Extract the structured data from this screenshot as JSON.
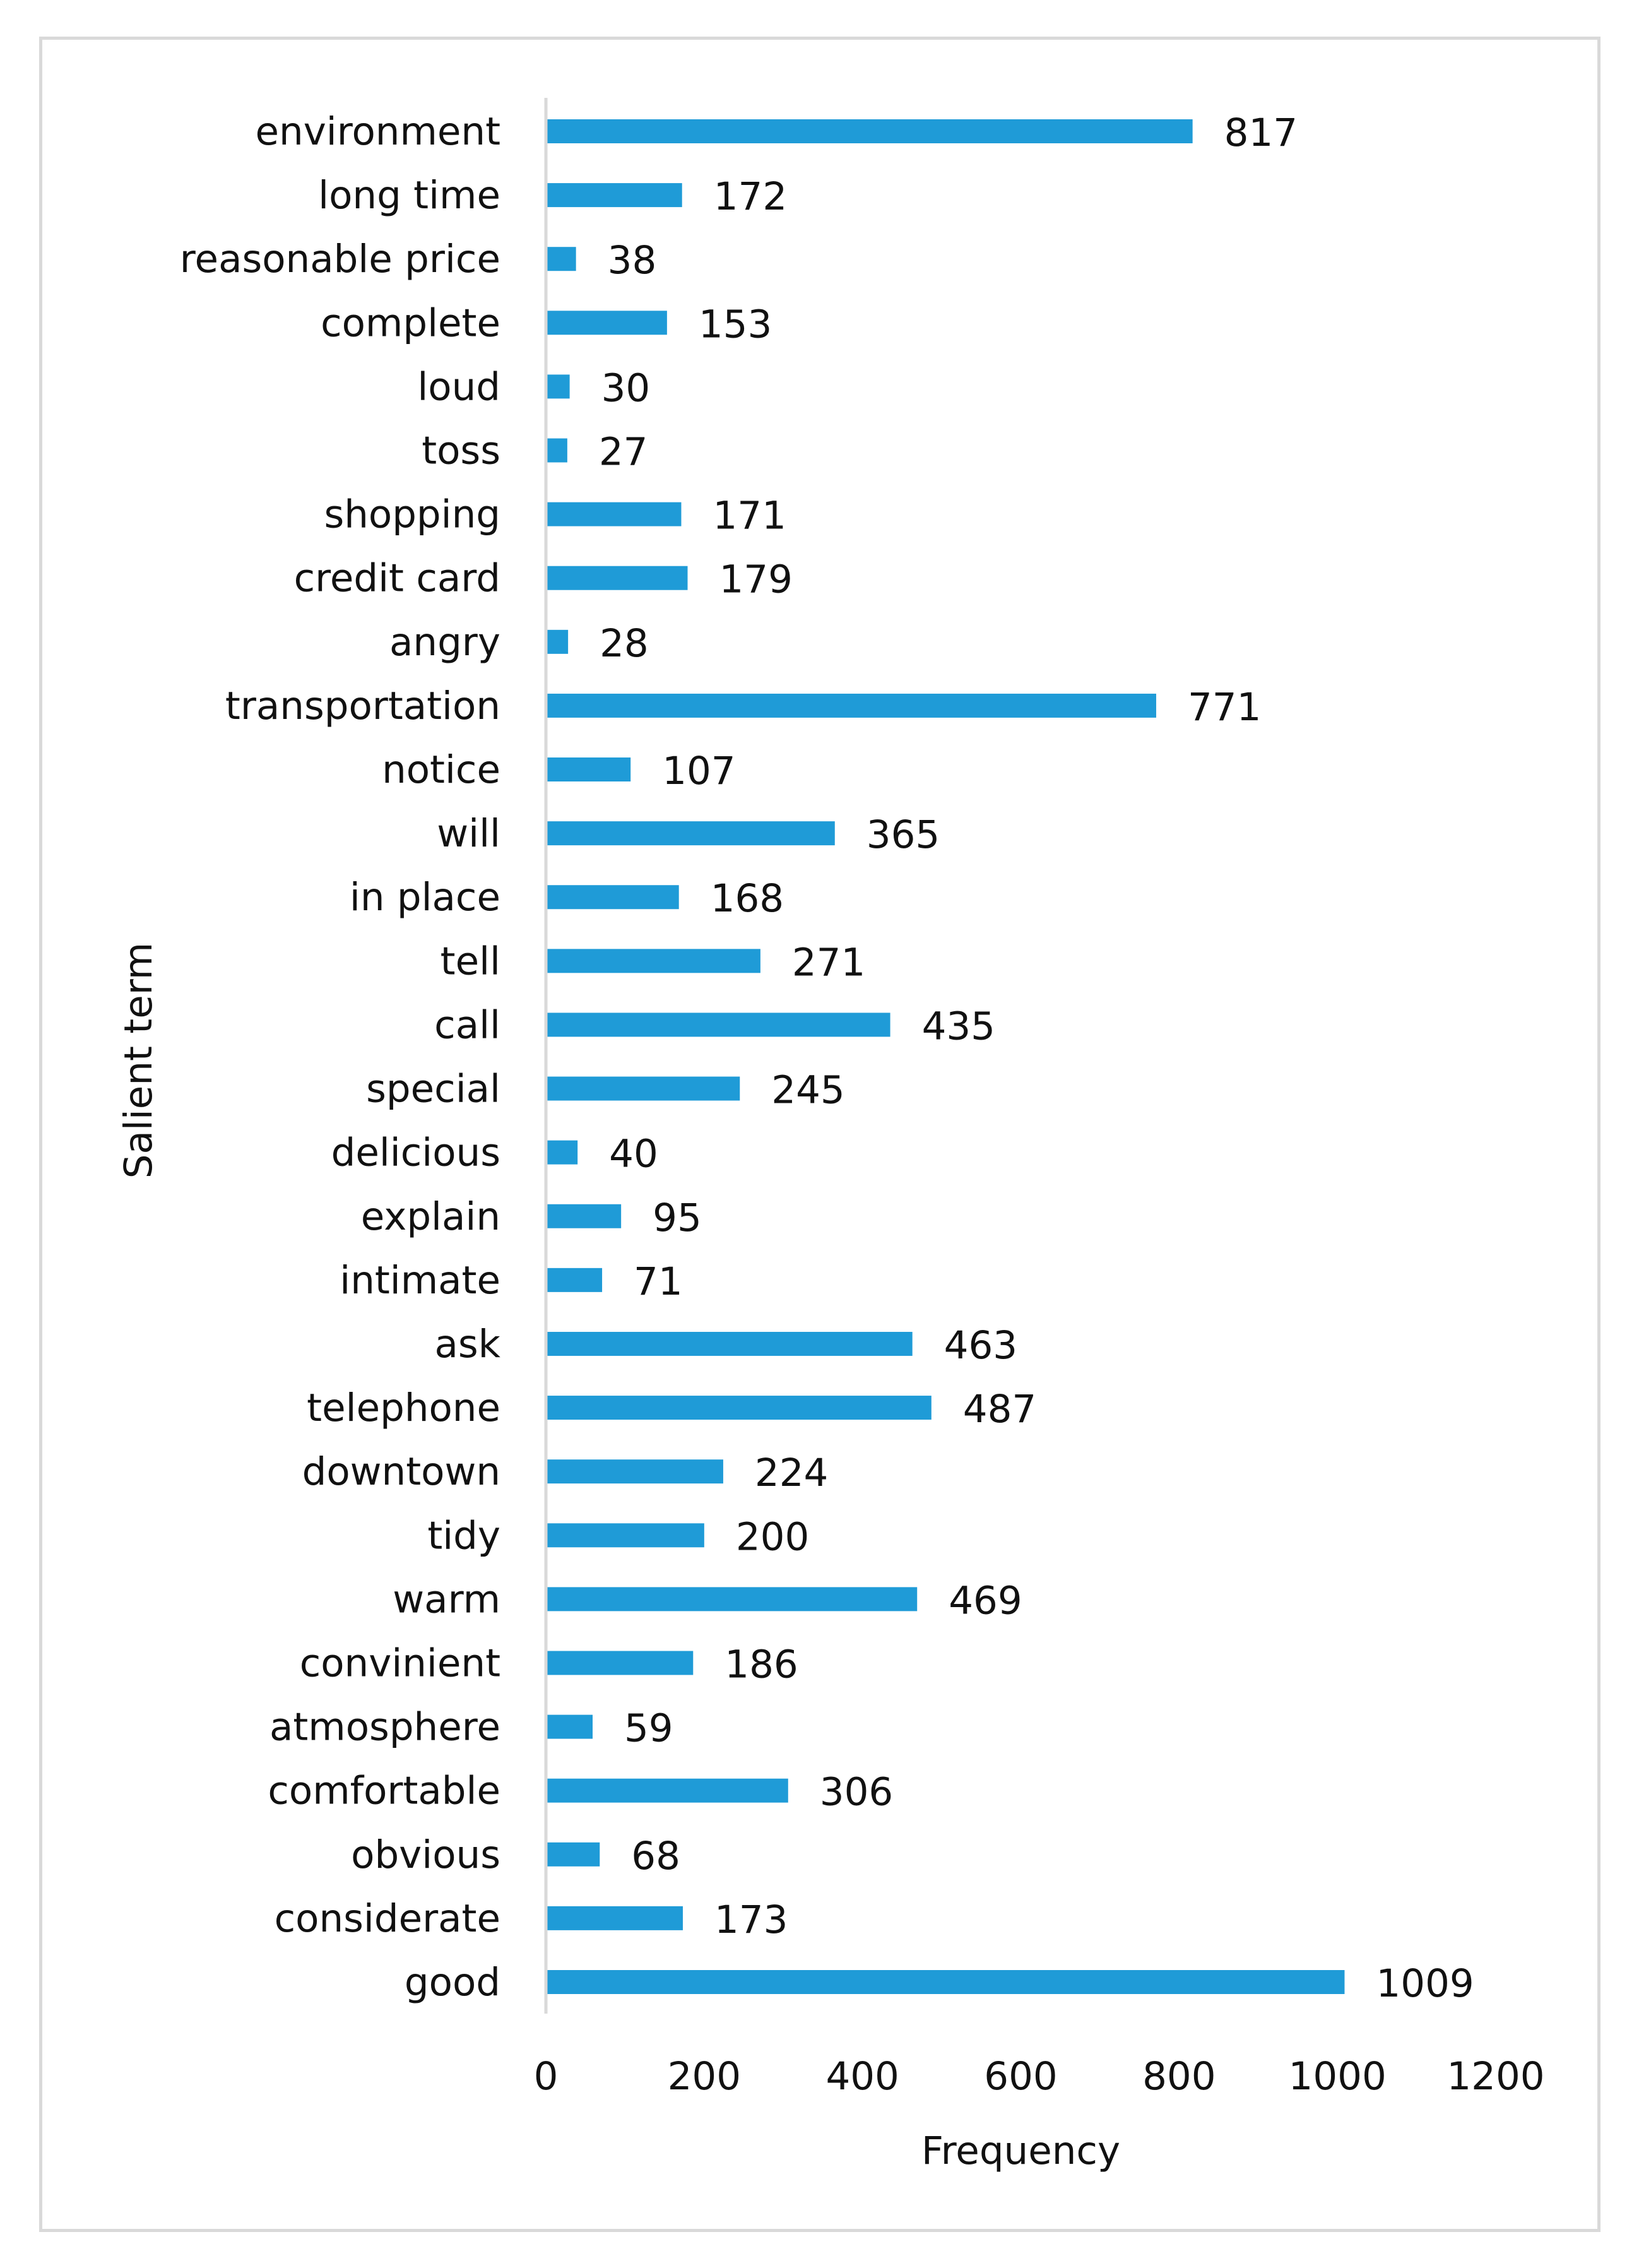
{
  "chart_data": {
    "type": "bar",
    "orientation": "horizontal",
    "title": "",
    "xlabel": "Frequency",
    "ylabel": "Salient term",
    "xlim": [
      0,
      1200
    ],
    "xticks": [
      0,
      200,
      400,
      600,
      800,
      1000,
      1200
    ],
    "grid": false,
    "bar_color": "#1f9bd7",
    "categories": [
      "environment",
      "long time",
      "reasonable price",
      "complete",
      "loud",
      "toss",
      "shopping",
      "credit card",
      "angry",
      "transportation",
      "notice",
      "will",
      "in place",
      "tell",
      "call",
      "special",
      "delicious",
      "explain",
      "intimate",
      "ask",
      "telephone",
      "downtown",
      "tidy",
      "warm",
      "convinient",
      "atmosphere",
      "comfortable",
      "obvious",
      "considerate",
      "good"
    ],
    "values": [
      817,
      172,
      38,
      153,
      30,
      27,
      171,
      179,
      28,
      771,
      107,
      365,
      168,
      271,
      435,
      245,
      40,
      95,
      71,
      463,
      487,
      224,
      200,
      469,
      186,
      59,
      306,
      68,
      173,
      1009
    ]
  }
}
